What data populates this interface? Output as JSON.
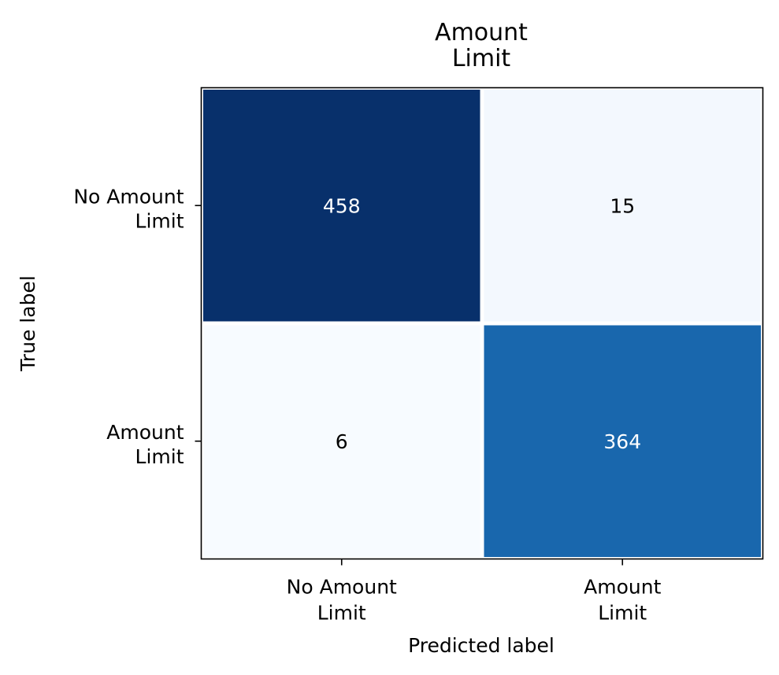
{
  "chart_data": {
    "type": "heatmap",
    "title": [
      "Amount",
      "Limit"
    ],
    "xlabel": "Predicted label",
    "ylabel": "True label",
    "x_categories": [
      [
        "No Amount",
        "Limit"
      ],
      [
        "Amount",
        "Limit"
      ]
    ],
    "y_categories": [
      [
        "No Amount",
        "Limit"
      ],
      [
        "Amount",
        "Limit"
      ]
    ],
    "matrix": [
      [
        458,
        15
      ],
      [
        6,
        364
      ]
    ],
    "colormap": "Blues",
    "colors": {
      "458": "#08306b",
      "15": "#f3f8fe",
      "6": "#f7fbff",
      "364": "#1967ad"
    },
    "text_colors": {
      "dark_cell": "#ffffff",
      "light_cell": "#000000"
    },
    "grid": false,
    "legend": "none"
  }
}
